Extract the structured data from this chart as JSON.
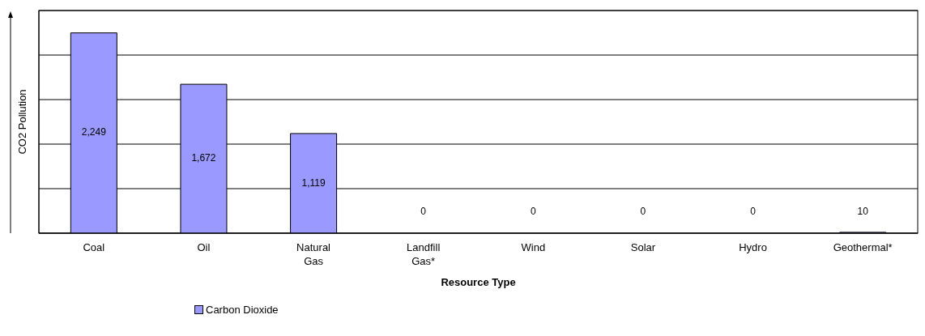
{
  "chart_data": {
    "type": "bar",
    "xlabel": "Resource Type",
    "ylabel": "CO2 Pollution",
    "categories": [
      "Coal",
      "Oil",
      "Natural Gas",
      "Landfill Gas*",
      "Wind",
      "Solar",
      "Hydro",
      "Geothermal*"
    ],
    "series": [
      {
        "name": "Carbon Dioxide",
        "color": "#9999ff",
        "values": [
          2249,
          1672,
          1119,
          0,
          0,
          0,
          0,
          10
        ],
        "value_labels": [
          "2,249",
          "1,672",
          "1,119",
          "0",
          "0",
          "0",
          "0",
          "10"
        ]
      }
    ],
    "ylim": [
      0,
      2500
    ],
    "tick_labels": "x",
    "grid": "y",
    "legend": "bottom"
  }
}
